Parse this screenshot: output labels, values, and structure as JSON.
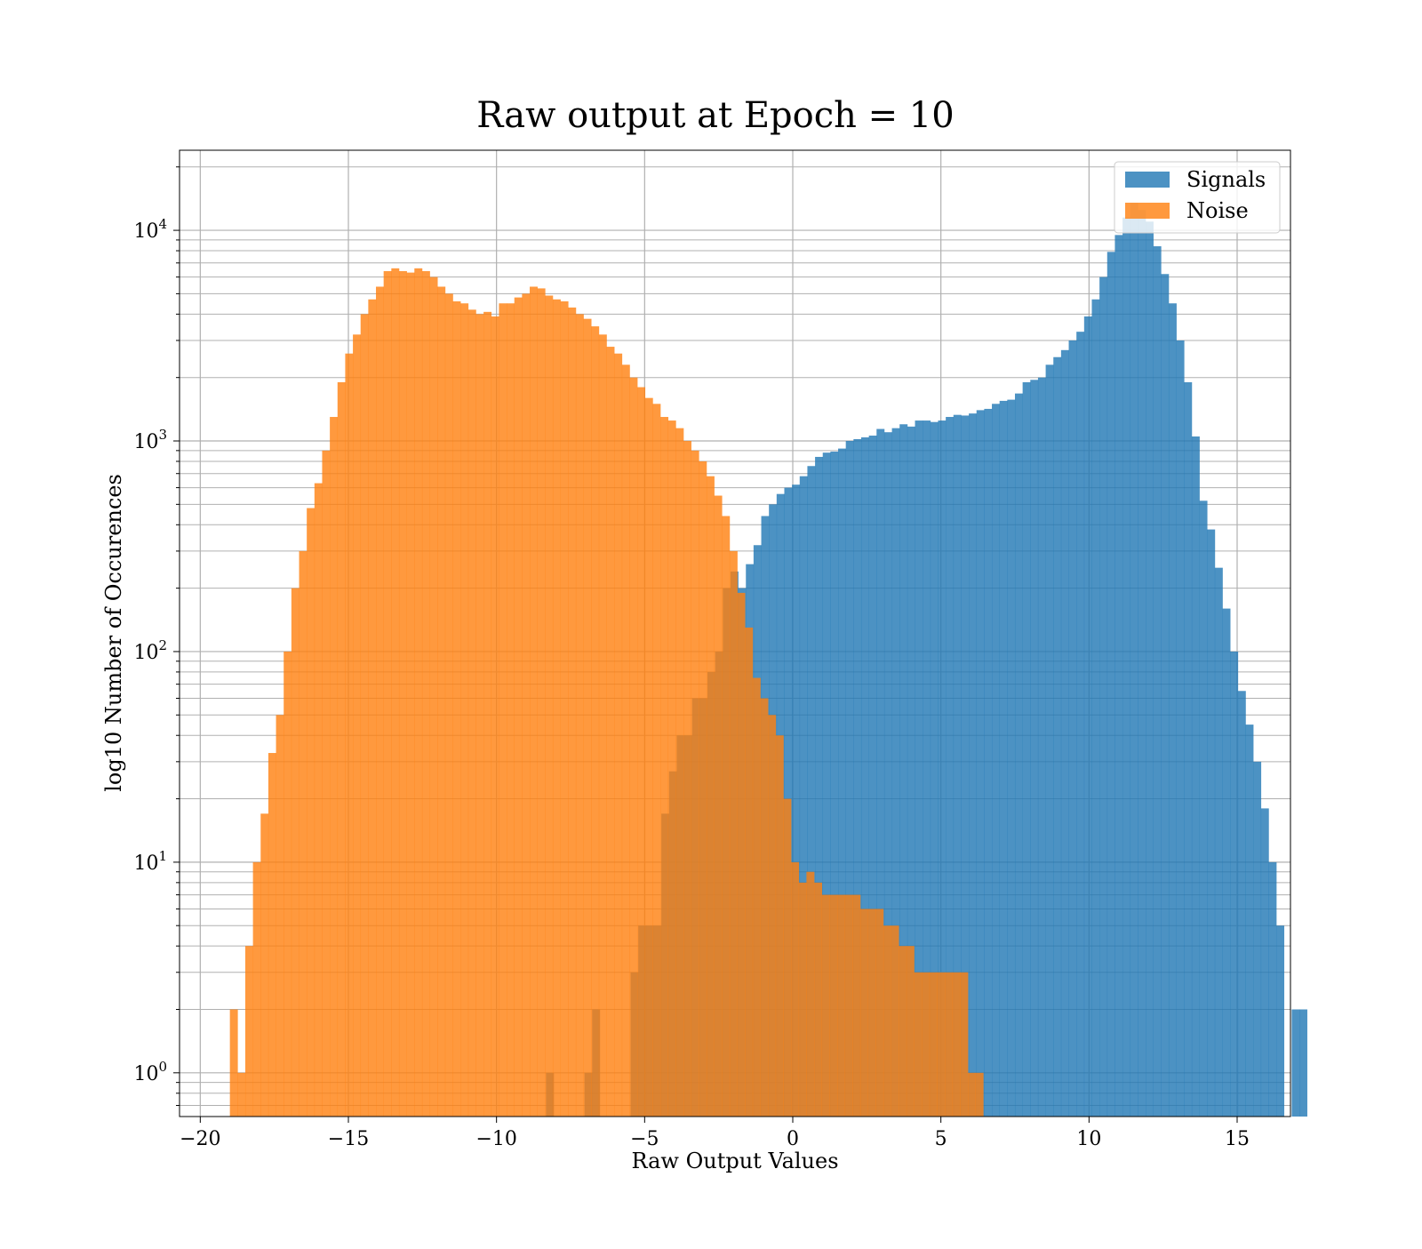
{
  "chart_data": {
    "type": "bar",
    "subtype": "overlaid-histogram",
    "title": "Raw output at Epoch = 10",
    "xlabel": "Raw Output Values",
    "ylabel": "log10 Number of Occurences",
    "xlim": [
      -20.7,
      16.8
    ],
    "ylim": [
      0.62,
      24000
    ],
    "yscale": "log",
    "grid": true,
    "legend_position": "top-right",
    "x_ticks": [
      {
        "value": -20,
        "label": "−20"
      },
      {
        "value": -15,
        "label": "−15"
      },
      {
        "value": -10,
        "label": "−10"
      },
      {
        "value": -5,
        "label": "−5"
      },
      {
        "value": 0,
        "label": "0"
      },
      {
        "value": 5,
        "label": "5"
      },
      {
        "value": 10,
        "label": "10"
      },
      {
        "value": 15,
        "label": "15"
      }
    ],
    "y_ticks": [
      {
        "value": 1,
        "base": "10",
        "exp": "0"
      },
      {
        "value": 10,
        "base": "10",
        "exp": "1"
      },
      {
        "value": 100,
        "base": "10",
        "exp": "2"
      },
      {
        "value": 1000,
        "base": "10",
        "exp": "3"
      },
      {
        "value": 10000,
        "base": "10",
        "exp": "4"
      }
    ],
    "series": [
      {
        "name": "Signals",
        "color": "#1f77b4",
        "opacity": 0.8,
        "start": -8.33,
        "width": 0.2595,
        "values": [
          1,
          0,
          0,
          0,
          0,
          1,
          2,
          0,
          0,
          0,
          0,
          3,
          5,
          5,
          5,
          17,
          27,
          40,
          40,
          60,
          60,
          80,
          100,
          200,
          240,
          200,
          260,
          320,
          440,
          500,
          560,
          600,
          620,
          680,
          760,
          840,
          880,
          890,
          920,
          1000,
          1020,
          1040,
          1060,
          1140,
          1100,
          1150,
          1200,
          1170,
          1250,
          1250,
          1230,
          1250,
          1300,
          1330,
          1320,
          1350,
          1400,
          1420,
          1500,
          1550,
          1570,
          1680,
          1900,
          1950,
          2000,
          2300,
          2500,
          2700,
          3000,
          3300,
          3900,
          4700,
          6000,
          7900,
          9500,
          11500,
          13500,
          12500,
          11000,
          8400,
          6200,
          4500,
          3000,
          1900,
          1050,
          520,
          380,
          250,
          160,
          100,
          65,
          45,
          30,
          18,
          10,
          5,
          0,
          2,
          2
        ]
      },
      {
        "name": "Noise",
        "color": "#ff7f0e",
        "opacity": 0.8,
        "start": -19.0,
        "width": 0.2595,
        "values": [
          2,
          1,
          4,
          10,
          17,
          33,
          50,
          100,
          200,
          300,
          480,
          630,
          900,
          1300,
          1900,
          2600,
          3200,
          4000,
          4700,
          5400,
          6400,
          6600,
          6400,
          6300,
          6600,
          6400,
          6000,
          5400,
          5000,
          4600,
          4500,
          4200,
          4000,
          4100,
          3900,
          4500,
          4500,
          4800,
          5000,
          5400,
          5300,
          4900,
          4700,
          4600,
          4300,
          4000,
          3800,
          3500,
          3200,
          2800,
          2600,
          2300,
          2000,
          1800,
          1600,
          1500,
          1300,
          1250,
          1150,
          1000,
          900,
          800,
          680,
          550,
          440,
          300,
          190,
          130,
          75,
          60,
          50,
          40,
          20,
          10,
          8,
          9,
          8,
          7,
          7,
          7,
          7,
          7,
          6,
          6,
          6,
          5,
          5,
          4,
          4,
          3,
          3,
          3,
          3,
          3,
          3,
          3,
          1,
          1
        ]
      }
    ]
  }
}
